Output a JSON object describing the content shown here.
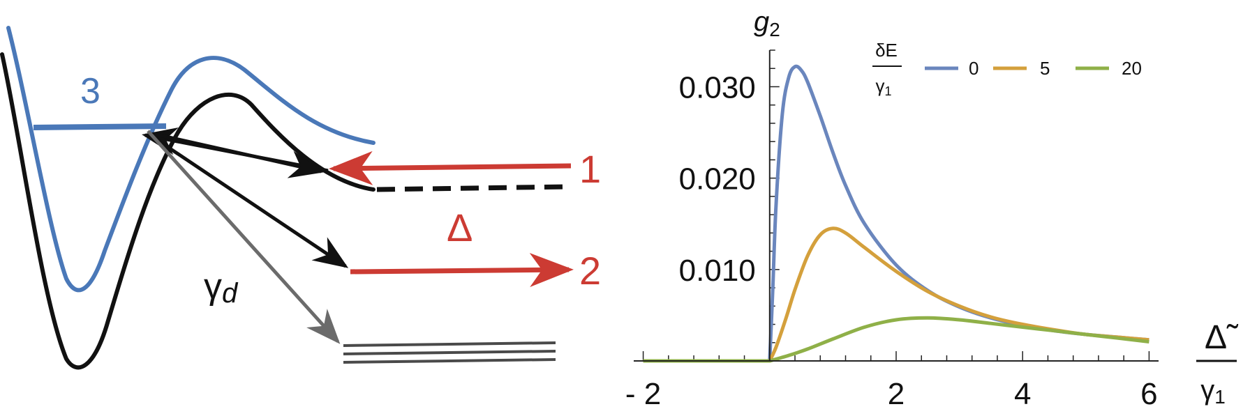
{
  "diagram": {
    "level_labels": [
      "3",
      "1",
      "Δ",
      "2"
    ],
    "gamma_label": "γ",
    "gamma_subscript": "d",
    "colors": {
      "blue": "#4a78b8",
      "black": "#111111",
      "red": "#cc3b33",
      "gray": "#6b6b6b"
    }
  },
  "chart_data": {
    "type": "line",
    "ylabel": "g",
    "ylabel_subscript": "2",
    "xlabel_top": "Δ̃",
    "xlabel_bottom": "γ",
    "xlabel_bottom_subscript": "1",
    "xlim": [
      -2.15,
      6.15
    ],
    "ylim": [
      0,
      0.034
    ],
    "xticks": [
      -2,
      2,
      4,
      6
    ],
    "xtick_labels": [
      "- 2",
      "2",
      "4",
      "6"
    ],
    "yticks": [
      0.01,
      0.02,
      0.03
    ],
    "ytick_labels": [
      "0.010",
      "0.020",
      "0.030"
    ],
    "legend": {
      "title_top": "δE",
      "title_bottom": "γ",
      "title_bottom_subscript": "1",
      "position": "top-right"
    },
    "series": [
      {
        "name": "0",
        "color": "#6a86bd",
        "x": [
          -2,
          0,
          0.05,
          0.1,
          0.2,
          0.3,
          0.4,
          0.5,
          0.6,
          0.8,
          1.0,
          1.2,
          1.5,
          2.0,
          2.5,
          3.0,
          3.5,
          4.0,
          4.5,
          5.0,
          5.5,
          6.0
        ],
        "y": [
          0,
          0,
          0.008,
          0.017,
          0.027,
          0.031,
          0.0322,
          0.0318,
          0.0305,
          0.0268,
          0.0228,
          0.0192,
          0.015,
          0.0105,
          0.0077,
          0.0059,
          0.0047,
          0.0039,
          0.0033,
          0.0029,
          0.0026,
          0.0023
        ]
      },
      {
        "name": "5",
        "color": "#d4a03c",
        "x": [
          -2,
          0,
          0.1,
          0.25,
          0.4,
          0.6,
          0.8,
          1.0,
          1.2,
          1.5,
          2.0,
          2.5,
          3.0,
          3.5,
          4.0,
          4.5,
          5.0,
          5.5,
          6.0
        ],
        "y": [
          0,
          0,
          0.0015,
          0.0045,
          0.0078,
          0.0115,
          0.0138,
          0.0145,
          0.014,
          0.0124,
          0.0098,
          0.0076,
          0.006,
          0.0048,
          0.004,
          0.0034,
          0.0029,
          0.0026,
          0.0023
        ]
      },
      {
        "name": "20",
        "color": "#8fb048",
        "x": [
          -2,
          0,
          0.3,
          0.6,
          1.0,
          1.5,
          2.0,
          2.5,
          3.0,
          3.5,
          4.0,
          4.5,
          5.0,
          5.5,
          6.0
        ],
        "y": [
          0,
          0,
          0.0006,
          0.0013,
          0.0024,
          0.0037,
          0.0045,
          0.0047,
          0.0045,
          0.0041,
          0.0037,
          0.0033,
          0.0029,
          0.0025,
          0.0021
        ]
      }
    ]
  }
}
